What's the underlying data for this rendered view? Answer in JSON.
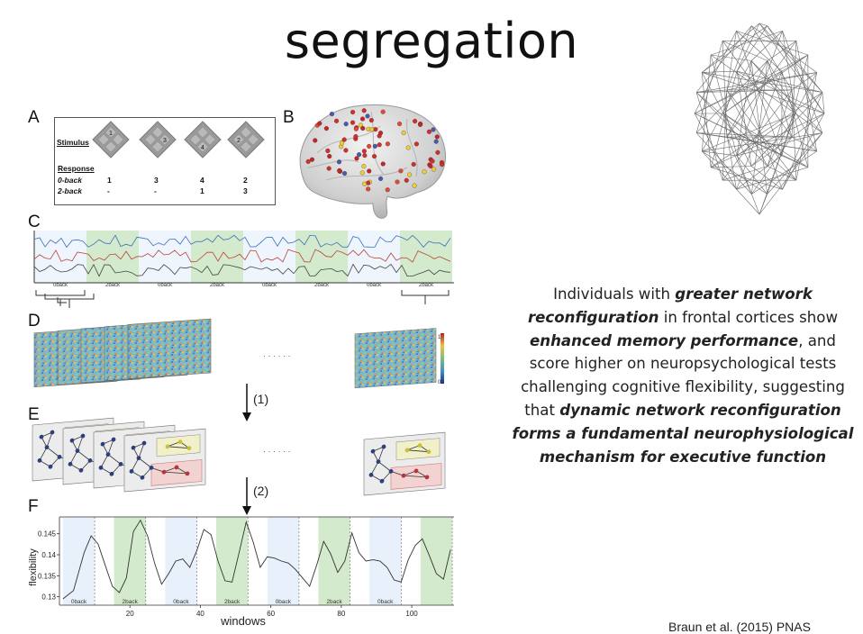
{
  "slide": {
    "title": "segregation",
    "citation": "Braun et al. (2015) PNAS",
    "body_parts": [
      {
        "t": "Individuals with ",
        "b": false
      },
      {
        "t": "greater network reconfiguration",
        "b": true
      },
      {
        "t": " in frontal cortices show ",
        "b": false
      },
      {
        "t": "enhanced memory performance",
        "b": true
      },
      {
        "t": ", and score higher on neuropsychological tests challenging cognitive flexibility, suggesting that ",
        "b": false
      },
      {
        "t": "dynamic network reconfiguration forms a fundamental neurophysiological mechanism for executive function",
        "b": true
      }
    ]
  },
  "figure": {
    "panels": [
      "A",
      "B",
      "C",
      "D",
      "E",
      "F"
    ],
    "panel_a": {
      "stimulus_label": "Stimulus",
      "response_label": "Response",
      "rows": [
        {
          "label": "0-back",
          "values": [
            "1",
            "3",
            "4",
            "2"
          ]
        },
        {
          "label": "2-back",
          "values": [
            "-",
            "-",
            "1",
            "3"
          ]
        }
      ],
      "stimulus_numbers": [
        "1",
        "3",
        "4",
        "2"
      ]
    },
    "panel_c": {
      "block_labels": [
        "0back",
        "2back",
        "0back",
        "2back",
        "0back",
        "2back",
        "0back",
        "2back"
      ]
    },
    "panel_d": {
      "colorbar_max": "1",
      "colorbar_min": "0",
      "ellipsis": "· · · · · ·"
    },
    "arrows": [
      {
        "label": "(1)"
      },
      {
        "label": "(2)"
      }
    ],
    "panel_e": {
      "ellipsis": "· · · · · ·"
    },
    "panel_f": {
      "ylabel": "flexibility",
      "xlabel": "windows",
      "y_ticks": [
        "0.145",
        "0.14",
        "0.135",
        "0.13"
      ],
      "x_ticks": [
        "20",
        "40",
        "60",
        "80",
        "100"
      ],
      "block_labels": [
        "0back",
        "2back",
        "0back",
        "2back",
        "0back",
        "2back",
        "0back"
      ]
    }
  },
  "colors": {
    "green_block": "#cfe8c6",
    "blue_block": "#e4eefb",
    "trace": "#444444",
    "text": "#222222"
  },
  "chart_data": {
    "type": "line",
    "xlabel": "windows",
    "ylabel": "flexibility",
    "ylim": [
      0.128,
      0.149
    ],
    "x": [
      1,
      4,
      7,
      9,
      11,
      13,
      15,
      17,
      19,
      21,
      23,
      25,
      27,
      29,
      31,
      33,
      35,
      37,
      39,
      41,
      43,
      45,
      47,
      49,
      51,
      53,
      55,
      57,
      59,
      61,
      63,
      65,
      67,
      69,
      71,
      73,
      75,
      77,
      79,
      81,
      83,
      85,
      87,
      89,
      91,
      93,
      95,
      97,
      99,
      101,
      103,
      105,
      107,
      109,
      111
    ],
    "series": [
      {
        "values": [
          0.1295,
          0.1315,
          0.1405,
          0.1445,
          0.1425,
          0.1375,
          0.1325,
          0.131,
          0.1345,
          0.1455,
          0.1482,
          0.1445,
          0.138,
          0.133,
          0.1355,
          0.1385,
          0.139,
          0.137,
          0.141,
          0.146,
          0.1448,
          0.1385,
          0.1338,
          0.1335,
          0.1405,
          0.1478,
          0.143,
          0.137,
          0.1395,
          0.1392,
          0.1385,
          0.138,
          0.1365,
          0.1345,
          0.1325,
          0.1375,
          0.1432,
          0.1402,
          0.1358,
          0.1385,
          0.1452,
          0.1405,
          0.1385,
          0.1388,
          0.1385,
          0.137,
          0.134,
          0.1335,
          0.1388,
          0.1422,
          0.1438,
          0.1398,
          0.1355,
          0.1342,
          0.1412
        ]
      }
    ]
  }
}
